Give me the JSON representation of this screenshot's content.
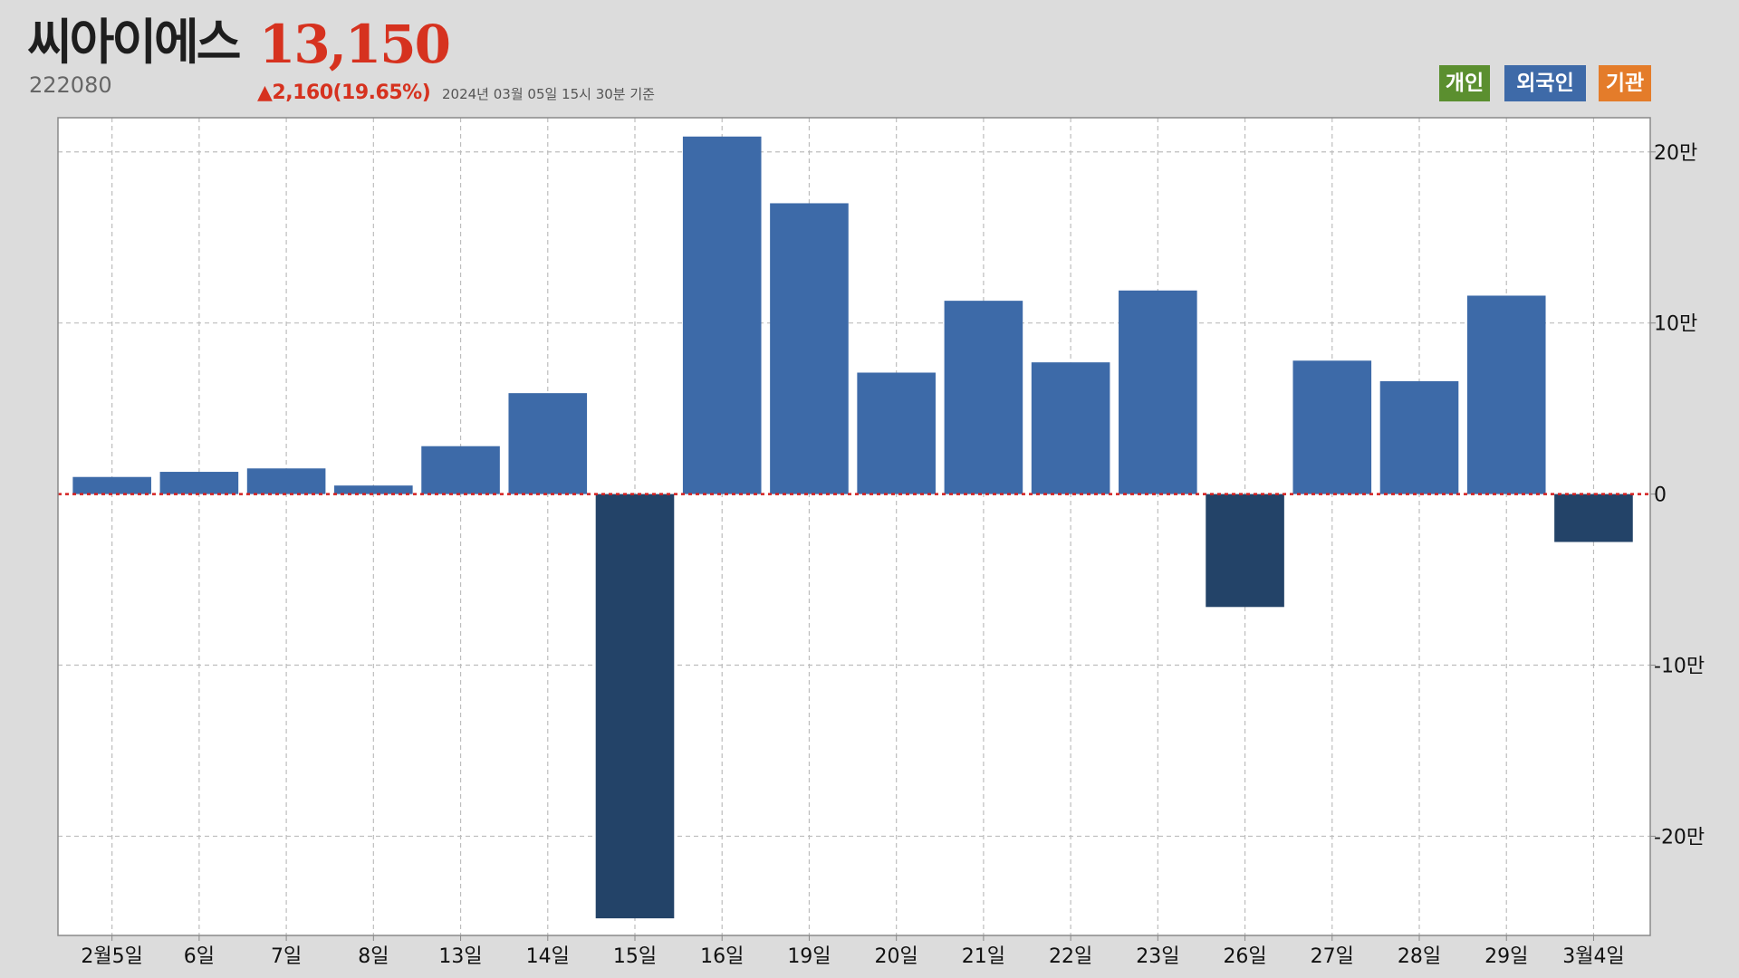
{
  "header": {
    "name": "씨아이에스",
    "price": "13,150",
    "code": "222080",
    "change": "▲2,160(19.65%)",
    "timestamp": "2024년 03월 05일 15시 30분 기준"
  },
  "legend": {
    "items": [
      {
        "label": "개인",
        "color": "#5b8f2f"
      },
      {
        "label": "외국인",
        "color": "#3e6aa8"
      },
      {
        "label": "기관",
        "color": "#e47c2a"
      }
    ]
  },
  "colors": {
    "positive": "#3d6aa8",
    "negative": "#234368",
    "zero_line": "#d42020",
    "grid": "#bdbdbd",
    "plot_bg": "#ffffff"
  },
  "chart_data": {
    "type": "bar",
    "series": [
      {
        "name": "외국인",
        "values": [
          10000,
          13000,
          15000,
          5000,
          28000,
          59000,
          -248000,
          209000,
          170000,
          71000,
          113000,
          77000,
          119000,
          -66000,
          78000,
          66000,
          116000,
          -28000
        ]
      }
    ],
    "categories": [
      "2월5일",
      "6일",
      "7일",
      "8일",
      "13일",
      "14일",
      "15일",
      "16일",
      "19일",
      "20일",
      "21일",
      "22일",
      "23일",
      "26일",
      "27일",
      "28일",
      "29일",
      "3월4일"
    ],
    "ylim": [
      -258000,
      220000
    ],
    "yticks": [
      200000,
      100000,
      0,
      -100000,
      -200000
    ],
    "ytick_labels": [
      "20만",
      "10만",
      "0",
      "-10만",
      "-20만"
    ],
    "grid": true,
    "legend_position": "top-right"
  }
}
